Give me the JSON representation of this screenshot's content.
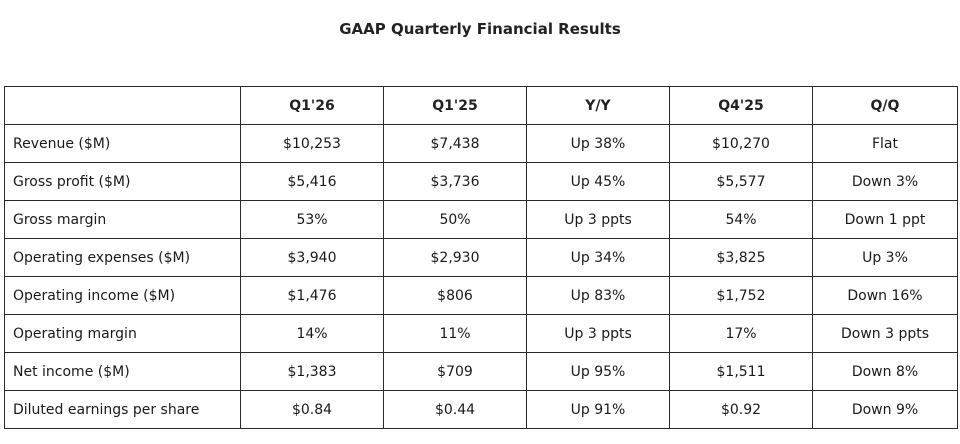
{
  "title": "GAAP Quarterly Financial Results",
  "table": {
    "header": [
      "",
      "Q1'26",
      "Q1'25",
      "Y/Y",
      "Q4'25",
      "Q/Q"
    ],
    "rows": [
      [
        "Revenue ($M)",
        "$10,253",
        "$7,438",
        "Up 38%",
        "$10,270",
        "Flat"
      ],
      [
        "Gross profit ($M)",
        "$5,416",
        "$3,736",
        "Up 45%",
        "$5,577",
        "Down 3%"
      ],
      [
        "Gross margin",
        "53%",
        "50%",
        "Up 3 ppts",
        "54%",
        "Down 1 ppt"
      ],
      [
        "Operating expenses ($M)",
        "$3,940",
        "$2,930",
        "Up 34%",
        "$3,825",
        "Up 3%"
      ],
      [
        "Operating income ($M)",
        "$1,476",
        "$806",
        "Up 83%",
        "$1,752",
        "Down 16%"
      ],
      [
        "Operating margin",
        "14%",
        "11%",
        "Up 3 ppts",
        "17%",
        "Down 3 ppts"
      ],
      [
        "Net income ($M)",
        "$1,383",
        "$709",
        "Up 95%",
        "$1,511",
        "Down 8%"
      ],
      [
        "Diluted earnings per share",
        "$0.84",
        "$0.44",
        "Up 91%",
        "$0.92",
        "Down 9%"
      ]
    ]
  }
}
